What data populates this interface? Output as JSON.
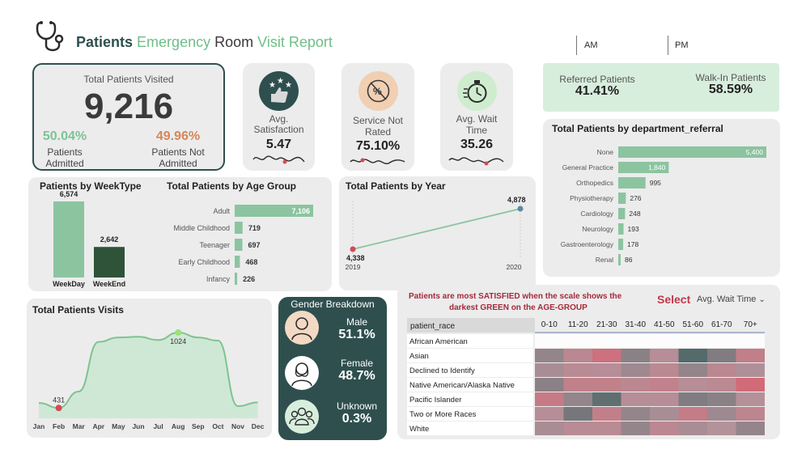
{
  "header": {
    "word1": "Patients",
    "word2": "Emergency",
    "word3": "Room",
    "word4": "Visit",
    "word5": "Report",
    "am_label": "AM",
    "pm_label": "PM"
  },
  "total": {
    "label": "Total Patients Visited",
    "value": "9,216",
    "admitted_pct": "50.04%",
    "admitted_label_1": "Patients",
    "admitted_label_2": "Admitted",
    "not_admitted_pct": "49.96%",
    "not_admitted_label_1": "Patients Not",
    "not_admitted_label_2": "Admitted"
  },
  "satisfaction": {
    "label_1": "Avg.",
    "label_2": "Satisfaction",
    "value": "5.47"
  },
  "service": {
    "label_1": "Service Not",
    "label_2": "Rated",
    "value": "75.10%"
  },
  "wait": {
    "label_1": "Avg. Wait",
    "label_2": "Time",
    "value": "35.26"
  },
  "referral": {
    "referred_label": "Referred Patients",
    "referred_value": "41.41%",
    "walkin_label": "Walk-In Patients",
    "walkin_value": "58.59%"
  },
  "chart_data": [
    {
      "id": "department",
      "type": "bar",
      "title": "Total Patients by department_referral",
      "categories": [
        "None",
        "General Practice",
        "Orthopedics",
        "Physiotherapy",
        "Cardiology",
        "Neurology",
        "Gastroenterology",
        "Renal"
      ],
      "values": [
        5400,
        1840,
        995,
        276,
        248,
        193,
        178,
        86
      ],
      "labels": [
        "5,400",
        "1,840",
        "995",
        "276",
        "248",
        "193",
        "178",
        "86"
      ]
    },
    {
      "id": "weektype",
      "type": "bar",
      "title": "Patients by WeekType",
      "categories": [
        "WeekDay",
        "WeekEnd"
      ],
      "values": [
        6574,
        2642
      ],
      "labels": [
        "6,574",
        "2,642"
      ]
    },
    {
      "id": "agegroup",
      "type": "bar",
      "title": "Total Patients by Age Group",
      "categories": [
        "Adult",
        "Middle Childhood",
        "Teenager",
        "Early Childhood",
        "Infancy"
      ],
      "values": [
        7106,
        719,
        697,
        468,
        226
      ],
      "labels": [
        "7,106",
        "719",
        "697",
        "468",
        "226"
      ]
    },
    {
      "id": "year",
      "type": "line",
      "title": "Total Patients by Year",
      "x": [
        "2019",
        "2020"
      ],
      "values": [
        4338,
        4878
      ],
      "labels": [
        "4,338",
        "4,878"
      ]
    },
    {
      "id": "monthly",
      "type": "area",
      "title": "Total Patients Visits",
      "x": [
        "Jan",
        "Feb",
        "Mar",
        "Apr",
        "May",
        "Jun",
        "Jul",
        "Aug",
        "Sep",
        "Oct",
        "Nov",
        "Dec"
      ],
      "values": [
        470,
        431,
        560,
        950,
        985,
        990,
        965,
        1024,
        985,
        960,
        445,
        475
      ],
      "annotations": [
        {
          "x": "Feb",
          "label": "431"
        },
        {
          "x": "Aug",
          "label": "1024"
        }
      ]
    },
    {
      "id": "heatmap",
      "type": "heatmap",
      "title": "",
      "row_header": "patient_race",
      "rows": [
        "African American",
        "Asian",
        "Declined to Identify",
        "Native American/Alaska Native",
        "Pacific Islander",
        "Two or More Races",
        "White"
      ],
      "columns": [
        "0-10",
        "11-20",
        "21-30",
        "31-40",
        "41-50",
        "51-60",
        "61-70",
        "70+"
      ],
      "values": [
        [
          0.5,
          0.5,
          0.5,
          0.5,
          0.5,
          0.5,
          0.5,
          0.5
        ],
        [
          0.35,
          0.62,
          0.88,
          0.3,
          0.55,
          0.05,
          0.25,
          0.72
        ],
        [
          0.45,
          0.58,
          0.55,
          0.4,
          0.6,
          0.35,
          0.62,
          0.48
        ],
        [
          0.3,
          0.7,
          0.7,
          0.62,
          0.68,
          0.55,
          0.6,
          0.95
        ],
        [
          0.78,
          0.35,
          0.1,
          0.55,
          0.55,
          0.25,
          0.3,
          0.52
        ],
        [
          0.55,
          0.2,
          0.72,
          0.35,
          0.45,
          0.75,
          0.4,
          0.65
        ],
        [
          0.45,
          0.58,
          0.58,
          0.35,
          0.62,
          0.45,
          0.5,
          0.35
        ]
      ]
    }
  ],
  "gender": {
    "title": "Gender Breakdown",
    "male_label": "Male",
    "male_value": "51.1%",
    "female_label": "Female",
    "female_value": "48.7%",
    "unknown_label": "Unknown",
    "unknown_value": "0.3%"
  },
  "heatmap_panel": {
    "note_1": "Patients are most SATISFIED when the scale shows the",
    "note_2": "darkest GREEN on the AGE-GROUP",
    "select_label": "Select",
    "dropdown_value": "Avg. Wait Time"
  },
  "colors": {
    "accent_green": "#7dba92",
    "dark_teal": "#2f4f4f",
    "bar_green": "#8cc4a0",
    "dark_green": "#2e5338",
    "orange": "#d4875a",
    "red_marker": "#d24b55",
    "referral_bg": "#d8eedd"
  }
}
